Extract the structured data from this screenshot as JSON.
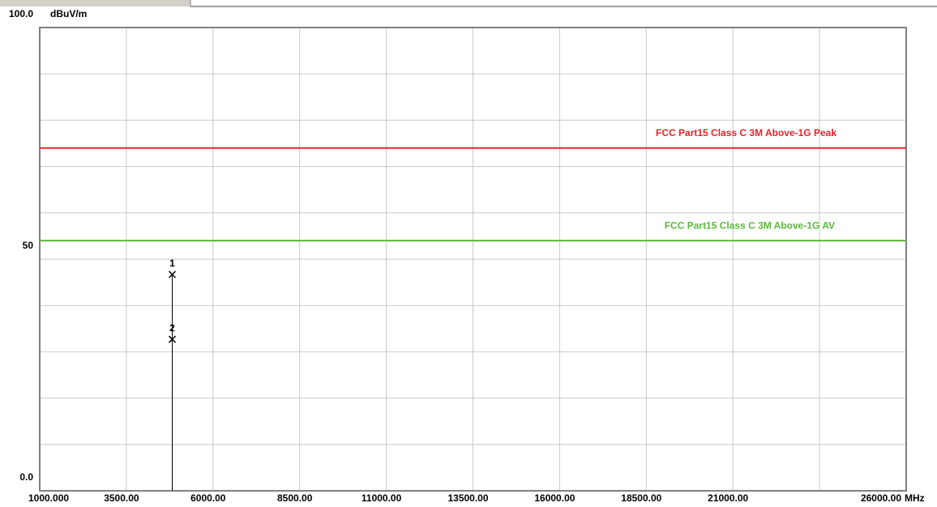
{
  "chart_data": {
    "type": "emission-scan",
    "y_unit": "dBuV/m",
    "x_unit": "MHz",
    "ylim": [
      0,
      100
    ],
    "yticks": [
      {
        "value": 100,
        "label": "100.0"
      },
      50,
      {
        "value": 0,
        "label": "0.0"
      }
    ],
    "ygrid": [
      0,
      10,
      20,
      30,
      40,
      50,
      60,
      70,
      80,
      90,
      100
    ],
    "xlim": [
      1000,
      26000
    ],
    "xticks": [
      {
        "value": 1000,
        "label": "1000.000"
      },
      {
        "value": 3500,
        "label": "3500.00"
      },
      {
        "value": 6000,
        "label": "6000.00"
      },
      {
        "value": 8500,
        "label": "8500.00"
      },
      {
        "value": 11000,
        "label": "11000.00"
      },
      {
        "value": 13500,
        "label": "13500.00"
      },
      {
        "value": 16000,
        "label": "16000.00"
      },
      {
        "value": 18500,
        "label": "18500.00"
      },
      {
        "value": 21000,
        "label": "21000.00"
      },
      {
        "value": 26000,
        "label": "26000.00"
      }
    ],
    "xgrid": [
      1000,
      3500,
      6000,
      8500,
      11000,
      13500,
      16000,
      18500,
      21000,
      23500,
      26000
    ],
    "grid": true,
    "limits": [
      {
        "name": "FCC Part15 Class C 3M Above-1G Peak",
        "value": 74,
        "color": "#e8232a"
      },
      {
        "name": "FCC Part15 Class C 3M Above-1G AV",
        "value": 54,
        "color": "#5cb83c"
      }
    ],
    "markers": [
      {
        "label": "1",
        "x": 4824,
        "y": 46.7
      },
      {
        "label": "2",
        "x": 4824,
        "y": 32.7
      }
    ]
  }
}
